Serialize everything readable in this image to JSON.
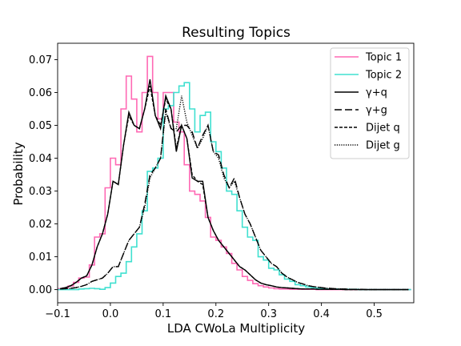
{
  "chart_data": {
    "type": "line",
    "title": "Resulting Topics",
    "xlabel": "LDA CWoLa Multiplicity",
    "ylabel": "Probability",
    "xlim": [
      -0.1,
      0.575
    ],
    "ylim": [
      -0.004,
      0.075
    ],
    "xticks": [
      -0.1,
      0.0,
      0.1,
      0.2,
      0.3,
      0.4,
      0.5
    ],
    "xtick_labels": [
      "−0.1",
      "0.0",
      "0.1",
      "0.2",
      "0.3",
      "0.4",
      "0.5"
    ],
    "yticks": [
      0.0,
      0.01,
      0.02,
      0.03,
      0.04,
      0.05,
      0.06,
      0.07
    ],
    "ytick_labels": [
      "0.00",
      "0.01",
      "0.02",
      "0.03",
      "0.04",
      "0.05",
      "0.06",
      "0.07"
    ],
    "legend_position": "upper-right",
    "grid": false,
    "bin_edges": [
      -0.1,
      -0.09,
      -0.08,
      -0.07,
      -0.06,
      -0.05,
      -0.04,
      -0.03,
      -0.02,
      -0.01,
      0.0,
      0.01,
      0.02,
      0.03,
      0.04,
      0.05,
      0.06,
      0.07,
      0.08,
      0.09,
      0.1,
      0.11,
      0.12,
      0.13,
      0.14,
      0.15,
      0.16,
      0.17,
      0.18,
      0.19,
      0.2,
      0.21,
      0.22,
      0.23,
      0.24,
      0.25,
      0.26,
      0.27,
      0.28,
      0.29,
      0.3,
      0.31,
      0.32,
      0.33,
      0.34,
      0.35,
      0.36,
      0.37,
      0.38,
      0.39,
      0.4,
      0.41,
      0.42,
      0.43,
      0.44,
      0.45,
      0.46,
      0.47,
      0.48,
      0.49,
      0.5,
      0.51,
      0.52,
      0.53,
      0.54,
      0.55,
      0.56,
      0.57
    ],
    "series": [
      {
        "name": "Topic 1",
        "style": "step",
        "color": "#ff69b4",
        "values": [
          0.0003,
          0.0005,
          0.0011,
          0.0022,
          0.0035,
          0.0038,
          0.0075,
          0.016,
          0.017,
          0.031,
          0.04,
          0.038,
          0.055,
          0.065,
          0.058,
          0.048,
          0.06,
          0.071,
          0.06,
          0.052,
          0.06,
          0.06,
          0.051,
          0.048,
          0.038,
          0.03,
          0.029,
          0.027,
          0.022,
          0.016,
          0.015,
          0.013,
          0.011,
          0.008,
          0.006,
          0.004,
          0.0028,
          0.0018,
          0.0012,
          0.0008,
          0.0005,
          0.0003,
          0.0002,
          0.0002,
          0.0001,
          0.0001,
          0.0001,
          0.0001,
          0.0001,
          0.0,
          0.0,
          0.0,
          0.0,
          0.0,
          0.0,
          0.0,
          0.0,
          0.0,
          0.0,
          0.0,
          0.0,
          0.0,
          0.0,
          0.0,
          0.0,
          0.0,
          0.0
        ]
      },
      {
        "name": "Topic 2",
        "style": "step",
        "color": "#40e0d0",
        "values": [
          0.0,
          0.0,
          0.0,
          0.0,
          0.0002,
          0.0003,
          0.0004,
          0.0003,
          0.0001,
          0.0006,
          0.002,
          0.004,
          0.005,
          0.0085,
          0.013,
          0.017,
          0.024,
          0.036,
          0.037,
          0.04,
          0.055,
          0.056,
          0.06,
          0.062,
          0.063,
          0.055,
          0.048,
          0.053,
          0.054,
          0.045,
          0.042,
          0.037,
          0.03,
          0.029,
          0.024,
          0.019,
          0.016,
          0.015,
          0.01,
          0.009,
          0.0065,
          0.006,
          0.0045,
          0.0032,
          0.0025,
          0.0015,
          0.0012,
          0.0008,
          0.0006,
          0.0004,
          0.0003,
          0.0002,
          0.0002,
          0.0001,
          0.0001,
          0.0001,
          0.0001,
          0.0,
          0.0,
          0.0,
          0.0,
          0.0,
          0.0,
          0.0,
          0.0,
          0.0,
          0.0
        ]
      },
      {
        "name": "γ+q",
        "style": "line",
        "dash": "solid",
        "color": "#000000",
        "values": [
          0.0003,
          0.0006,
          0.0012,
          0.0022,
          0.0035,
          0.0042,
          0.0075,
          0.013,
          0.017,
          0.023,
          0.033,
          0.032,
          0.044,
          0.054,
          0.05,
          0.049,
          0.055,
          0.064,
          0.053,
          0.049,
          0.059,
          0.055,
          0.042,
          0.05,
          0.046,
          0.034,
          0.033,
          0.033,
          0.022,
          0.018,
          0.015,
          0.013,
          0.011,
          0.009,
          0.007,
          0.006,
          0.0045,
          0.003,
          0.002,
          0.0015,
          0.0012,
          0.0008,
          0.0006,
          0.0005,
          0.0004,
          0.0003,
          0.0002,
          0.0002,
          0.0002,
          0.0001,
          0.0001,
          0.0001,
          0.0001,
          0.0001,
          0.0,
          0.0,
          0.0,
          0.0,
          0.0,
          0.0,
          0.0,
          0.0,
          0.0,
          0.0,
          0.0,
          0.0,
          0.0
        ]
      },
      {
        "name": "γ+g",
        "style": "line",
        "dash": "long-dash",
        "color": "#000000",
        "values": [
          0.0002,
          0.0003,
          0.0004,
          0.0006,
          0.001,
          0.0015,
          0.0025,
          0.003,
          0.0035,
          0.005,
          0.007,
          0.007,
          0.011,
          0.015,
          0.017,
          0.019,
          0.026,
          0.035,
          0.037,
          0.04,
          0.055,
          0.049,
          0.048,
          0.05,
          0.05,
          0.048,
          0.043,
          0.047,
          0.05,
          0.042,
          0.041,
          0.035,
          0.031,
          0.034,
          0.028,
          0.023,
          0.02,
          0.016,
          0.012,
          0.01,
          0.008,
          0.007,
          0.005,
          0.0038,
          0.003,
          0.0022,
          0.0017,
          0.0012,
          0.0009,
          0.0007,
          0.0005,
          0.0004,
          0.0003,
          0.0002,
          0.0002,
          0.0001,
          0.0001,
          0.0001,
          0.0,
          0.0,
          0.0,
          0.0,
          0.0,
          0.0,
          0.0,
          0.0,
          0.0
        ]
      },
      {
        "name": "Dijet q",
        "style": "line",
        "dash": "short-dash",
        "color": "#000000",
        "values": [
          0.0003,
          0.0006,
          0.0012,
          0.0022,
          0.0035,
          0.0042,
          0.0075,
          0.013,
          0.017,
          0.023,
          0.033,
          0.032,
          0.044,
          0.053,
          0.05,
          0.049,
          0.055,
          0.062,
          0.053,
          0.05,
          0.058,
          0.055,
          0.043,
          0.05,
          0.046,
          0.035,
          0.033,
          0.032,
          0.022,
          0.018,
          0.015,
          0.013,
          0.011,
          0.009,
          0.007,
          0.006,
          0.0045,
          0.003,
          0.002,
          0.0015,
          0.0012,
          0.0008,
          0.0006,
          0.0005,
          0.0004,
          0.0003,
          0.0002,
          0.0002,
          0.0002,
          0.0001,
          0.0001,
          0.0001,
          0.0001,
          0.0001,
          0.0,
          0.0,
          0.0,
          0.0,
          0.0,
          0.0,
          0.0,
          0.0,
          0.0,
          0.0,
          0.0,
          0.0,
          0.0
        ]
      },
      {
        "name": "Dijet g",
        "style": "line",
        "dash": "dotted",
        "color": "#000000",
        "values": [
          0.0002,
          0.0003,
          0.0004,
          0.0006,
          0.001,
          0.0015,
          0.0025,
          0.003,
          0.0035,
          0.005,
          0.007,
          0.007,
          0.011,
          0.015,
          0.017,
          0.019,
          0.025,
          0.034,
          0.037,
          0.04,
          0.054,
          0.049,
          0.049,
          0.059,
          0.051,
          0.047,
          0.043,
          0.046,
          0.05,
          0.042,
          0.04,
          0.034,
          0.031,
          0.033,
          0.028,
          0.023,
          0.02,
          0.016,
          0.012,
          0.01,
          0.008,
          0.007,
          0.005,
          0.0038,
          0.003,
          0.0022,
          0.0017,
          0.0012,
          0.0009,
          0.0007,
          0.0005,
          0.0004,
          0.0003,
          0.0002,
          0.0002,
          0.0001,
          0.0001,
          0.0001,
          0.0,
          0.0,
          0.0,
          0.0,
          0.0,
          0.0,
          0.0,
          0.0,
          0.0
        ]
      }
    ]
  }
}
